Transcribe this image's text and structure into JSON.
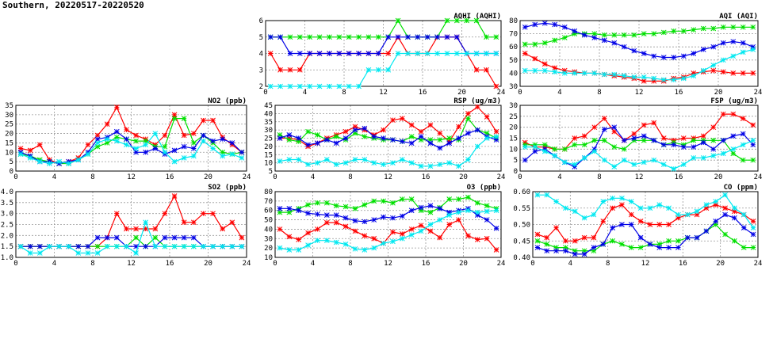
{
  "page_title": "Southern, 20220517-20220520",
  "colors": {
    "red": "#ff0000",
    "green": "#00e000",
    "blue": "#0000e6",
    "cyan": "#00e8f0",
    "grid": "#999999",
    "axis": "#000000"
  },
  "chart_data": [
    {
      "id": "aqhi",
      "type": "line",
      "title": "AQHI (AQHI)",
      "x_range": [
        0,
        24
      ],
      "x_ticks": [
        "0",
        "4",
        "8",
        "12",
        "16",
        "20",
        "24"
      ],
      "y_range": [
        2,
        6
      ],
      "y_ticks": [
        "2",
        "3",
        "4",
        "5",
        "6"
      ],
      "series": [
        {
          "name": "red",
          "values": [
            4,
            3,
            3,
            3,
            4,
            4,
            4,
            4,
            4,
            4,
            4,
            4,
            4,
            5,
            4,
            4,
            4,
            5,
            5,
            5,
            4,
            3,
            3,
            2
          ]
        },
        {
          "name": "green",
          "values": [
            5,
            5,
            5,
            5,
            5,
            5,
            5,
            5,
            5,
            5,
            5,
            5,
            5,
            6,
            5,
            5,
            5,
            5,
            6,
            6,
            6,
            6,
            5,
            5
          ]
        },
        {
          "name": "blue",
          "values": [
            5,
            5,
            4,
            4,
            4,
            4,
            4,
            4,
            4,
            4,
            4,
            4,
            5,
            5,
            5,
            5,
            5,
            5,
            5,
            5,
            4,
            4,
            4,
            4
          ]
        },
        {
          "name": "cyan",
          "values": [
            2,
            2,
            2,
            2,
            2,
            2,
            2,
            2,
            2,
            2,
            3,
            3,
            3,
            4,
            4,
            4,
            4,
            4,
            4,
            4,
            4,
            4,
            4,
            4
          ]
        }
      ]
    },
    {
      "id": "aqi",
      "type": "line",
      "title": "AQI (AQI)",
      "x_range": [
        0,
        24
      ],
      "x_ticks": [
        "0",
        "4",
        "8",
        "12",
        "16",
        "20",
        "24"
      ],
      "y_range": [
        30,
        80
      ],
      "y_ticks": [
        "30",
        "40",
        "50",
        "60",
        "70",
        "80"
      ],
      "series": [
        {
          "name": "red",
          "values": [
            55,
            51,
            47,
            44,
            42,
            41,
            40,
            40,
            39,
            38,
            37,
            36,
            34,
            34,
            34,
            36,
            37,
            40,
            41,
            42,
            41,
            40,
            40,
            40
          ]
        },
        {
          "name": "green",
          "values": [
            62,
            62,
            63,
            65,
            67,
            70,
            70,
            70,
            69,
            69,
            69,
            69,
            70,
            70,
            71,
            72,
            72,
            73,
            74,
            74,
            75,
            75,
            75,
            75
          ]
        },
        {
          "name": "blue",
          "values": [
            75,
            77,
            78,
            77,
            75,
            72,
            69,
            67,
            65,
            63,
            60,
            57,
            55,
            53,
            52,
            52,
            53,
            55,
            58,
            60,
            63,
            64,
            63,
            60
          ]
        },
        {
          "name": "cyan",
          "values": [
            42,
            42,
            42,
            41,
            40,
            40,
            40,
            40,
            39,
            39,
            38,
            37,
            37,
            36,
            35,
            35,
            36,
            38,
            42,
            46,
            50,
            53,
            56,
            58
          ]
        }
      ]
    },
    {
      "id": "no2",
      "type": "line",
      "title": "NO2 (ppb)",
      "x_range": [
        0,
        24
      ],
      "x_ticks": [
        "0",
        "4",
        "8",
        "12",
        "16",
        "20",
        "24"
      ],
      "y_range": [
        0,
        35
      ],
      "y_ticks": [
        "0",
        "5",
        "10",
        "15",
        "20",
        "25",
        "30",
        "35"
      ],
      "series": [
        {
          "name": "red",
          "values": [
            12,
            11,
            14,
            6,
            4,
            5,
            7,
            14,
            19,
            25,
            34,
            22,
            19,
            17,
            14,
            19,
            30,
            19,
            20,
            27,
            27,
            18,
            14,
            10
          ]
        },
        {
          "name": "green",
          "values": [
            9,
            8,
            6,
            5,
            4,
            4,
            6,
            9,
            13,
            15,
            18,
            17,
            16,
            16,
            13,
            13,
            28,
            28,
            15,
            19,
            15,
            10,
            9,
            10
          ]
        },
        {
          "name": "blue",
          "values": [
            10,
            8,
            5,
            5,
            4,
            5,
            6,
            10,
            17,
            18,
            21,
            17,
            10,
            10,
            12,
            9,
            11,
            13,
            12,
            19,
            16,
            17,
            15,
            10
          ]
        },
        {
          "name": "cyan",
          "values": [
            9,
            7,
            5,
            4,
            5,
            4,
            6,
            9,
            15,
            17,
            16,
            14,
            12,
            14,
            20,
            10,
            5,
            7,
            8,
            16,
            12,
            8,
            9,
            7
          ]
        }
      ]
    },
    {
      "id": "rsp",
      "type": "line",
      "title": "RSP (ug/m3)",
      "x_range": [
        0,
        24
      ],
      "x_ticks": [
        "0",
        "4",
        "8",
        "12",
        "16",
        "20",
        "24"
      ],
      "y_range": [
        5,
        45
      ],
      "y_ticks": [
        "5",
        "10",
        "15",
        "20",
        "25",
        "30",
        "35",
        "40",
        "45"
      ],
      "series": [
        {
          "name": "red",
          "values": [
            25,
            25,
            24,
            20,
            22,
            25,
            27,
            29,
            32,
            30,
            27,
            30,
            36,
            37,
            33,
            29,
            33,
            28,
            23,
            32,
            40,
            44,
            38,
            29
          ]
        },
        {
          "name": "green",
          "values": [
            27,
            24,
            23,
            29,
            27,
            24,
            26,
            24,
            28,
            26,
            25,
            24,
            24,
            23,
            26,
            24,
            24,
            24,
            25,
            24,
            37,
            30,
            28,
            25
          ]
        },
        {
          "name": "blue",
          "values": [
            25,
            27,
            25,
            21,
            22,
            24,
            22,
            25,
            30,
            31,
            26,
            25,
            24,
            23,
            22,
            26,
            22,
            19,
            22,
            25,
            28,
            30,
            26,
            24
          ]
        },
        {
          "name": "cyan",
          "values": [
            11,
            12,
            12,
            9,
            10,
            12,
            9,
            10,
            12,
            12,
            10,
            9,
            10,
            12,
            10,
            8,
            8,
            9,
            10,
            8,
            12,
            20,
            25,
            26
          ]
        }
      ]
    },
    {
      "id": "fsp",
      "type": "line",
      "title": "FSP (ug/m3)",
      "x_range": [
        0,
        24
      ],
      "x_ticks": [
        "0",
        "4",
        "8",
        "12",
        "16",
        "20",
        "24"
      ],
      "y_range": [
        0,
        30
      ],
      "y_ticks": [
        "0",
        "5",
        "10",
        "15",
        "20",
        "25",
        "30"
      ],
      "series": [
        {
          "name": "red",
          "values": [
            13,
            11,
            11,
            10,
            10,
            15,
            16,
            20,
            24,
            18,
            14,
            17,
            21,
            22,
            15,
            14,
            15,
            15,
            16,
            20,
            26,
            26,
            24,
            21
          ]
        },
        {
          "name": "green",
          "values": [
            12,
            12,
            12,
            10,
            10,
            12,
            12,
            14,
            14,
            11,
            10,
            14,
            14,
            14,
            12,
            13,
            12,
            14,
            14,
            14,
            14,
            8,
            5,
            5
          ]
        },
        {
          "name": "blue",
          "values": [
            5,
            9,
            10,
            7,
            4,
            2,
            6,
            10,
            19,
            20,
            14,
            15,
            16,
            14,
            12,
            12,
            11,
            11,
            13,
            10,
            14,
            16,
            17,
            12
          ]
        },
        {
          "name": "cyan",
          "values": [
            11,
            11,
            9,
            7,
            4,
            3,
            6,
            9,
            5,
            2,
            5,
            3,
            4,
            5,
            3,
            1,
            3,
            6,
            6,
            7,
            8,
            10,
            12,
            14
          ]
        }
      ]
    },
    {
      "id": "so2",
      "type": "line",
      "title": "SO2 (ppb)",
      "x_range": [
        0,
        24
      ],
      "x_ticks": [
        "0",
        "4",
        "8",
        "12",
        "16",
        "20",
        "24"
      ],
      "y_range": [
        1.0,
        4.0
      ],
      "y_ticks": [
        "1.0",
        "1.5",
        "2.0",
        "2.5",
        "3.0",
        "3.5",
        "4.0"
      ],
      "series": [
        {
          "name": "red",
          "values": [
            1.5,
            1.5,
            1.5,
            1.5,
            1.5,
            1.5,
            1.5,
            1.5,
            1.5,
            1.9,
            3.0,
            2.3,
            2.3,
            2.3,
            2.3,
            3.0,
            3.8,
            2.6,
            2.6,
            3.0,
            3.0,
            2.3,
            2.6,
            1.9
          ]
        },
        {
          "name": "green",
          "values": [
            1.5,
            1.5,
            1.5,
            1.5,
            1.5,
            1.5,
            1.5,
            1.5,
            1.5,
            1.5,
            1.5,
            1.5,
            1.9,
            1.5,
            1.9,
            1.5,
            1.5,
            1.5,
            1.5,
            1.5,
            1.5,
            1.5,
            1.5,
            1.5
          ]
        },
        {
          "name": "blue",
          "values": [
            1.5,
            1.5,
            1.5,
            1.5,
            1.5,
            1.5,
            1.5,
            1.5,
            1.9,
            1.9,
            1.9,
            1.5,
            1.5,
            1.5,
            1.5,
            1.9,
            1.9,
            1.9,
            1.9,
            1.5,
            1.5,
            1.5,
            1.5,
            1.5
          ]
        },
        {
          "name": "cyan",
          "values": [
            1.5,
            1.2,
            1.2,
            1.5,
            1.5,
            1.5,
            1.2,
            1.2,
            1.2,
            1.5,
            1.5,
            1.5,
            1.2,
            2.6,
            1.5,
            1.5,
            1.5,
            1.5,
            1.5,
            1.5,
            1.5,
            1.5,
            1.5,
            1.5
          ]
        }
      ]
    },
    {
      "id": "o3",
      "type": "line",
      "title": "O3 (ppb)",
      "x_range": [
        0,
        24
      ],
      "x_ticks": [
        "0",
        "4",
        "8",
        "12",
        "16",
        "20",
        "24"
      ],
      "y_range": [
        10,
        80
      ],
      "y_ticks": [
        "10",
        "20",
        "30",
        "40",
        "50",
        "60",
        "70",
        "80"
      ],
      "series": [
        {
          "name": "red",
          "values": [
            40,
            32,
            29,
            36,
            40,
            47,
            47,
            43,
            38,
            33,
            30,
            25,
            37,
            35,
            40,
            44,
            38,
            31,
            45,
            50,
            33,
            29,
            30,
            18
          ]
        },
        {
          "name": "green",
          "values": [
            58,
            58,
            62,
            66,
            68,
            68,
            65,
            64,
            62,
            66,
            70,
            70,
            68,
            72,
            72,
            60,
            58,
            63,
            72,
            72,
            74,
            68,
            65,
            62
          ]
        },
        {
          "name": "blue",
          "values": [
            62,
            62,
            60,
            57,
            56,
            55,
            55,
            52,
            49,
            48,
            50,
            53,
            52,
            54,
            60,
            63,
            65,
            62,
            58,
            60,
            62,
            55,
            50,
            41
          ]
        },
        {
          "name": "cyan",
          "values": [
            20,
            18,
            18,
            23,
            28,
            28,
            26,
            24,
            19,
            18,
            20,
            25,
            27,
            30,
            34,
            38,
            45,
            50,
            55,
            58,
            60,
            58,
            59,
            60
          ]
        }
      ]
    },
    {
      "id": "co",
      "type": "line",
      "title": "CO (ppm)",
      "x_range": [
        0,
        24
      ],
      "x_ticks": [
        "0",
        "4",
        "8",
        "12",
        "16",
        "20",
        "24"
      ],
      "y_range": [
        0.4,
        0.6
      ],
      "y_ticks": [
        "0.40",
        "0.45",
        "0.50",
        "0.55",
        "0.60"
      ],
      "series": [
        {
          "name": "red",
          "values": [
            0.47,
            0.46,
            0.49,
            0.45,
            0.45,
            0.46,
            0.46,
            0.51,
            0.55,
            0.56,
            0.53,
            0.51,
            0.5,
            0.5,
            0.5,
            0.52,
            0.53,
            0.53,
            0.55,
            0.56,
            0.55,
            0.54,
            0.53,
            0.51
          ]
        },
        {
          "name": "green",
          "values": [
            0.45,
            0.44,
            0.43,
            0.43,
            0.42,
            0.42,
            0.42,
            0.44,
            0.45,
            0.44,
            0.43,
            0.43,
            0.44,
            0.44,
            0.45,
            0.45,
            0.46,
            0.46,
            0.48,
            0.5,
            0.47,
            0.45,
            0.43,
            0.43
          ]
        },
        {
          "name": "blue",
          "values": [
            0.43,
            0.42,
            0.42,
            0.42,
            0.41,
            0.41,
            0.43,
            0.44,
            0.49,
            0.5,
            0.5,
            0.46,
            0.44,
            0.43,
            0.43,
            0.43,
            0.46,
            0.46,
            0.48,
            0.51,
            0.53,
            0.52,
            0.49,
            0.47
          ]
        },
        {
          "name": "cyan",
          "values": [
            0.59,
            0.59,
            0.57,
            0.55,
            0.54,
            0.52,
            0.53,
            0.57,
            0.58,
            0.58,
            0.57,
            0.55,
            0.55,
            0.56,
            0.55,
            0.53,
            0.53,
            0.54,
            0.56,
            0.57,
            0.59,
            0.55,
            0.53,
            0.49
          ]
        }
      ]
    }
  ]
}
